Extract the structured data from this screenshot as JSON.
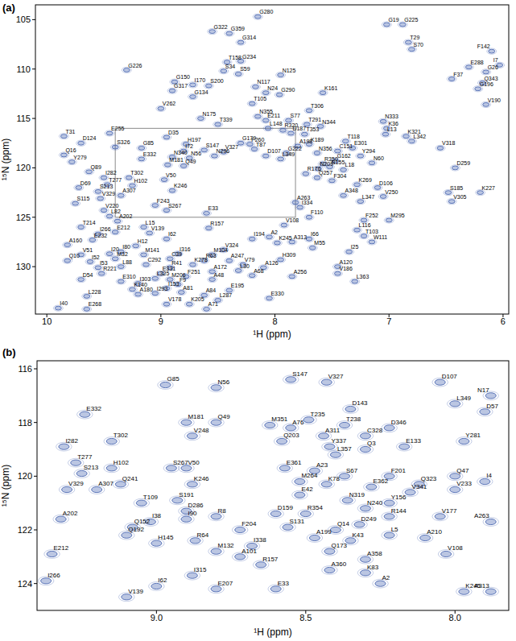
{
  "chart_data": [
    {
      "type": "scatter",
      "title": "(a)",
      "x_label": "¹H (ppm)",
      "y_label": "¹⁵N (ppm)",
      "xlim": [
        10.1,
        5.95
      ],
      "ylim": [
        134.8,
        103.5
      ],
      "xticks": [
        10,
        9,
        8,
        7,
        6
      ],
      "yticks": [
        105,
        110,
        115,
        120,
        125,
        130
      ],
      "zoom_box": {
        "x": [
          9.4,
          7.82
        ],
        "y": [
          116,
          125
        ]
      },
      "series": [
        {
          "color": "#3b5bab",
          "marker": "contour",
          "labels": [
            "G280",
            "G19",
            "G225",
            "G322",
            "G359",
            "G314",
            "T29",
            "S70",
            "F142",
            "T158",
            "G234",
            "S34",
            "S59",
            "N125",
            "E288",
            "G26",
            "F37",
            "Q343",
            "G196",
            "I7",
            "V190",
            "G226",
            "G150",
            "I170",
            "S200",
            "G317",
            "G134",
            "N117",
            "N24",
            "G290",
            "K161",
            "V262",
            "T105",
            "T306",
            "N175",
            "T339",
            "N355",
            "E211",
            "S77",
            "T291",
            "L148",
            "N344",
            "R320",
            "D187",
            "T353",
            "K36",
            "N333",
            "L13",
            "K321",
            "L342",
            "V318",
            "T118",
            "E301",
            "Y294",
            "E255",
            "T31",
            "D124",
            "D35",
            "S326",
            "G85",
            "H197",
            "S147",
            "I72",
            "N340",
            "N296",
            "V327",
            "G179",
            "F260",
            "T87",
            "D107",
            "L349",
            "G222",
            "K189",
            "A198",
            "N356",
            "C151",
            "G162",
            "R350",
            "N60",
            "D259",
            "Q16",
            "Y279",
            "E332",
            "M181",
            "Q49",
            "Q89",
            "I282",
            "T302",
            "T277",
            "H102",
            "D69",
            "S213",
            "V329",
            "A307",
            "V50",
            "K246",
            "N209",
            "R176",
            "Q257",
            "F304",
            "K269",
            "D106",
            "S185",
            "K227",
            "V305",
            "V250",
            "L347",
            "A348",
            "A263",
            "I334",
            "F110",
            "F252",
            "M295",
            "V108",
            "L116",
            "T103",
            "W111",
            "I66",
            "I25",
            "A2",
            "K245",
            "A313",
            "M55",
            "I194",
            "R157",
            "L15",
            "V139",
            "I62",
            "S115",
            "V220",
            "L82",
            "A202",
            "E212",
            "T214",
            "E232",
            "A160",
            "I266",
            "H12",
            "I80",
            "M141",
            "M32",
            "I20",
            "V51",
            "I52",
            "Q10",
            "I53",
            "L88",
            "C292",
            "C39",
            "E33",
            "I316",
            "M104",
            "R63",
            "K278",
            "R41",
            "V324",
            "A247",
            "V79",
            "L30",
            "A126",
            "A68",
            "H309",
            "A256",
            "A120",
            "V186",
            "L363",
            "R221",
            "E331",
            "L325",
            "M206",
            "F251",
            "A172",
            "A48",
            "F9",
            "D54",
            "E310",
            "I303",
            "I153",
            "K140",
            "A180",
            "I293",
            "A81",
            "A84",
            "E195",
            "L287",
            "L228",
            "V178",
            "K205",
            "A71",
            "E330",
            "I40",
            "E268",
            "F243",
            "S267",
            "N56",
            "L18",
            "N155"
          ],
          "x": [
            8.15,
            7.02,
            6.88,
            8.55,
            8.4,
            8.3,
            6.83,
            6.8,
            6.1,
            8.42,
            8.3,
            8.45,
            8.32,
            7.95,
            6.3,
            6.15,
            6.45,
            6.18,
            6.22,
            6.03,
            6.15,
            9.3,
            8.88,
            8.72,
            8.58,
            8.9,
            8.72,
            8.17,
            8.08,
            7.96,
            7.58,
            9.0,
            8.2,
            7.7,
            8.65,
            8.5,
            8.15,
            8.08,
            7.88,
            7.72,
            8.06,
            7.6,
            7.93,
            7.86,
            7.74,
            7.02,
            7.05,
            7.03,
            6.85,
            6.8,
            6.55,
            7.38,
            7.32,
            7.25,
            9.45,
            9.85,
            9.7,
            8.95,
            9.4,
            9.17,
            8.78,
            8.62,
            8.8,
            8.9,
            8.53,
            8.45,
            8.3,
            8.22,
            8.18,
            8.08,
            7.95,
            7.9,
            7.7,
            7.8,
            7.63,
            7.45,
            7.47,
            7.58,
            7.15,
            6.42,
            9.85,
            9.78,
            9.17,
            8.94,
            8.8,
            9.63,
            9.5,
            9.28,
            9.47,
            9.25,
            9.72,
            9.55,
            9.53,
            9.35,
            8.97,
            8.9,
            7.62,
            7.73,
            7.63,
            7.5,
            7.28,
            7.1,
            6.48,
            6.2,
            6.45,
            7.05,
            7.25,
            7.4,
            7.82,
            7.78,
            7.7,
            7.22,
            7.0,
            7.92,
            7.28,
            7.22,
            7.15,
            7.7,
            7.35,
            8.05,
            7.98,
            7.85,
            7.67,
            8.2,
            8.58,
            9.15,
            9.1,
            8.95,
            9.75,
            9.5,
            9.45,
            9.38,
            9.4,
            9.7,
            9.6,
            9.82,
            9.55,
            9.22,
            9.35,
            9.15,
            9.4,
            9.45,
            9.7,
            9.62,
            9.82,
            9.55,
            9.35,
            9.13,
            8.92,
            8.6,
            8.85,
            8.55,
            8.62,
            8.72,
            8.92,
            8.45,
            8.4,
            8.28,
            8.32,
            8.1,
            8.2,
            7.95,
            7.85,
            7.45,
            7.45,
            7.3,
            9.52,
            9.0,
            9.05,
            8.92,
            8.78,
            8.55,
            8.55,
            8.85,
            9.7,
            9.35,
            9.2,
            8.95,
            9.25,
            9.2,
            9.05,
            8.82,
            8.62,
            8.4,
            8.5,
            9.65,
            8.95,
            8.75,
            8.6,
            8.05,
            9.9,
            9.65,
            9.05,
            8.95,
            8.75,
            7.4,
            7.52
          ],
          "values": [
            104.7,
            105.5,
            105.5,
            106.2,
            106.4,
            107.3,
            107.3,
            108.0,
            108.2,
            109.3,
            109.2,
            110.2,
            110.5,
            110.6,
            109.8,
            110.3,
            111.0,
            111.4,
            112.0,
            109.6,
            113.6,
            110.1,
            111.3,
            111.6,
            111.7,
            112.2,
            112.8,
            111.8,
            112.4,
            112.6,
            112.4,
            114.0,
            113.5,
            114.2,
            115.0,
            115.6,
            114.8,
            115.2,
            115.2,
            115.6,
            116.0,
            115.8,
            116.2,
            116.5,
            116.6,
            116.0,
            115.3,
            116.6,
            116.8,
            117.3,
            118.0,
            117.3,
            118.0,
            118.8,
            116.5,
            116.8,
            117.5,
            116.9,
            117.9,
            118.0,
            117.6,
            118.2,
            118.3,
            118.9,
            118.8,
            118.4,
            117.5,
            117.6,
            118.1,
            118.8,
            119.1,
            118.5,
            117.6,
            117.8,
            118.5,
            118.3,
            119.3,
            119.6,
            119.5,
            120.0,
            118.7,
            119.4,
            119.1,
            119.7,
            119.8,
            120.4,
            121.0,
            121.0,
            121.7,
            121.8,
            122.0,
            122.4,
            123.1,
            122.8,
            121.2,
            122.3,
            120.1,
            120.6,
            121.0,
            121.3,
            121.7,
            122.0,
            122.5,
            122.5,
            123.4,
            122.9,
            123.4,
            122.8,
            123.5,
            124.0,
            125.0,
            125.3,
            125.3,
            125.8,
            126.3,
            126.9,
            127.5,
            127.2,
            128.5,
            127.0,
            127.6,
            127.5,
            128.1,
            127.2,
            126.1,
            126.0,
            126.6,
            127.2,
            123.6,
            124.3,
            124.9,
            125.4,
            126.5,
            126.0,
            127.3,
            127.8,
            126.7,
            127.9,
            128.5,
            128.8,
            129.2,
            128.7,
            128.8,
            129.5,
            129.4,
            130.1,
            130.0,
            129.8,
            129.2,
            124.6,
            128.7,
            128.8,
            129.4,
            129.8,
            130.1,
            128.3,
            129.4,
            129.8,
            130.4,
            130.1,
            130.9,
            129.3,
            131.0,
            130.0,
            130.7,
            131.5,
            130.7,
            130.7,
            131.2,
            131.3,
            131.0,
            130.5,
            131.3,
            131.8,
            131.3,
            131.5,
            131.7,
            132.2,
            132.3,
            132.8,
            132.7,
            132.6,
            132.9,
            132.4,
            133.4,
            133.0,
            133.8,
            133.8,
            134.3,
            133.2,
            134.2,
            134.3,
            123.8,
            124.3,
            119.0,
            120.2,
            119.9
          ]
        }
      ]
    },
    {
      "type": "scatter",
      "title": "(b)",
      "x_label": "¹H (ppm)",
      "y_label": "¹⁵N (ppm)",
      "xlim": [
        9.4,
        7.82
      ],
      "ylim": [
        125,
        115.7
      ],
      "xticks": [
        {
          "value": 9,
          "label": "9.0"
        },
        {
          "value": 8.5,
          "label": "8.5"
        },
        {
          "value": 8,
          "label": "8.0"
        }
      ],
      "yticks": [
        116,
        118,
        120,
        122,
        124
      ],
      "series": [
        {
          "color": "#3b5bab",
          "marker": "contour",
          "labels": [
            "G85",
            "S147",
            "V327",
            "N56",
            "D107",
            "N17",
            "L349",
            "D57",
            "E332",
            "M181",
            "Q49",
            "V248",
            "M351",
            "A76",
            "T235",
            "D143",
            "T238",
            "A311",
            "C328",
            "D346",
            "E133",
            "Q203",
            "Y337",
            "L357",
            "Q3",
            "Y281",
            "T302",
            "I282",
            "T277",
            "H102",
            "S213",
            "Q241",
            "V329",
            "A307",
            "S267",
            "V50",
            "K246",
            "E361",
            "A23",
            "M264",
            "S67",
            "F201",
            "Q323",
            "Q47",
            "I4",
            "V233",
            "E42",
            "K78",
            "N319",
            "E362",
            "Y156",
            "V341",
            "N240",
            "S191",
            "T109",
            "D286",
            "R8",
            "D159",
            "R354",
            "I38",
            "I90",
            "R144",
            "V177",
            "A263",
            "A202",
            "Q152",
            "S131",
            "D249",
            "Q14",
            "H145",
            "Q192",
            "R64",
            "F204",
            "L5",
            "A210",
            "A199",
            "I338",
            "M132",
            "A101",
            "Q173",
            "K43",
            "A358",
            "V108",
            "E212",
            "R157",
            "A360",
            "K83",
            "I266",
            "I315",
            "I62",
            "E207",
            "E33",
            "V139",
            "A2",
            "K245",
            "A313"
          ],
          "x": [
            8.97,
            8.55,
            8.43,
            8.8,
            8.05,
            7.88,
            8.0,
            7.9,
            9.24,
            8.9,
            8.8,
            8.88,
            8.62,
            8.55,
            8.49,
            8.35,
            8.37,
            8.44,
            8.3,
            8.22,
            8.17,
            8.58,
            8.42,
            8.4,
            8.3,
            7.97,
            9.15,
            9.31,
            9.27,
            9.15,
            9.25,
            9.12,
            9.3,
            9.2,
            8.95,
            8.9,
            8.88,
            8.57,
            8.47,
            8.52,
            8.37,
            8.22,
            8.12,
            8.0,
            7.9,
            8.0,
            8.52,
            8.43,
            8.36,
            8.28,
            8.22,
            8.15,
            8.3,
            8.93,
            9.05,
            8.9,
            8.8,
            8.6,
            8.5,
            9.02,
            8.9,
            8.22,
            8.05,
            7.88,
            9.32,
            9.08,
            8.56,
            8.32,
            8.4,
            9.0,
            9.1,
            8.87,
            8.72,
            8.22,
            8.1,
            8.47,
            8.68,
            8.8,
            8.72,
            8.42,
            8.35,
            8.3,
            8.03,
            9.35,
            8.65,
            8.42,
            8.3,
            9.37,
            8.88,
            9.0,
            8.8,
            8.6,
            9.1,
            8.25,
            7.97,
            7.88
          ],
          "values": [
            116.6,
            116.4,
            116.5,
            116.7,
            116.5,
            117.0,
            117.3,
            117.6,
            117.7,
            118.0,
            118.0,
            118.5,
            118.1,
            118.2,
            117.9,
            117.5,
            118.1,
            118.5,
            118.5,
            118.2,
            118.9,
            118.7,
            118.9,
            119.2,
            119.0,
            118.7,
            118.7,
            118.9,
            119.5,
            119.7,
            119.9,
            120.3,
            120.5,
            120.5,
            119.7,
            119.7,
            120.3,
            119.7,
            119.8,
            120.2,
            120.0,
            120.0,
            120.3,
            120.0,
            120.2,
            120.5,
            120.7,
            120.3,
            120.9,
            120.4,
            121.0,
            120.6,
            121.2,
            120.9,
            121.0,
            121.3,
            121.5,
            121.4,
            121.4,
            121.7,
            121.6,
            121.5,
            121.5,
            121.7,
            121.6,
            121.9,
            121.9,
            121.8,
            122.0,
            122.5,
            122.2,
            122.4,
            122.0,
            122.2,
            122.3,
            122.3,
            122.6,
            122.8,
            123.0,
            122.8,
            122.4,
            123.1,
            122.9,
            122.9,
            123.3,
            123.5,
            123.6,
            123.9,
            123.7,
            124.1,
            124.2,
            124.2,
            124.5,
            124.0,
            124.3,
            124.3
          ]
        }
      ]
    }
  ]
}
